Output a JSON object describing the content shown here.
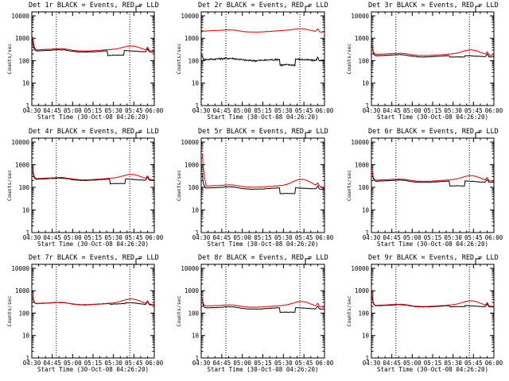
{
  "figure": {
    "events_color": "#000000",
    "lld_color": "#e00000",
    "background": "#ffffff"
  },
  "chart_data": [
    {
      "type": "line",
      "title": "Det 1r BLACK = Events, RED = LLD",
      "xlabel": "Start Time (30-Oct-08 04:26:20)",
      "ylabel": "Counts/sec",
      "y_scale": "log",
      "ylim": [
        1,
        15000
      ],
      "xlim": [
        0,
        100
      ],
      "yticks": [
        "1",
        "10",
        "100",
        "1000",
        "10000"
      ],
      "xticks": [
        "04:30",
        "04:45",
        "05:00",
        "05:15",
        "05:30",
        "05:45",
        "06:00"
      ],
      "vlines": [
        20,
        80
      ],
      "series": [
        {
          "name": "Events",
          "color": "#000000",
          "base": 265,
          "spike": 700,
          "dip": [
            62,
            75
          ],
          "dip_factor": 0.62,
          "bump": 1.0
        },
        {
          "name": "LLD",
          "color": "#e00000",
          "base": 295,
          "spike": 1100,
          "bump": 1.5
        }
      ]
    },
    {
      "type": "line",
      "title": "Det 2r BLACK = Events, RED = LLD",
      "xlabel": "Start Time (30-Oct-08 04:26:20)",
      "ylabel": "Counts/sec",
      "y_scale": "log",
      "ylim": [
        1,
        15000
      ],
      "xlim": [
        0,
        100
      ],
      "yticks": [
        "1",
        "10",
        "100",
        "1000",
        "10000"
      ],
      "xticks": [
        "04:30",
        "04:45",
        "05:00",
        "05:15",
        "05:30",
        "05:45",
        "06:00"
      ],
      "vlines": [
        20,
        80
      ],
      "series": [
        {
          "name": "Events",
          "color": "#000000",
          "base": 110,
          "spike": 160,
          "dip": [
            64,
            76
          ],
          "dip_factor": 0.55,
          "bump": 1.0,
          "noise": 0.18
        },
        {
          "name": "LLD",
          "color": "#e00000",
          "base": 2050,
          "spike": 2200,
          "bump": 1.25
        }
      ]
    },
    {
      "type": "line",
      "title": "Det 3r BLACK = Events, RED = LLD",
      "xlabel": "Start Time (30-Oct-08 04:26:20)",
      "ylabel": "Counts/sec",
      "y_scale": "log",
      "ylim": [
        1,
        15000
      ],
      "xlim": [
        0,
        100
      ],
      "yticks": [
        "1",
        "10",
        "100",
        "1000",
        "10000"
      ],
      "xticks": [
        "04:30",
        "04:45",
        "05:00",
        "05:15",
        "05:30",
        "05:45",
        "06:00"
      ],
      "vlines": [
        20,
        80
      ],
      "series": [
        {
          "name": "Events",
          "color": "#000000",
          "base": 160,
          "spike": 400,
          "dip": [
            64,
            76
          ],
          "dip_factor": 0.85,
          "bump": 1.0
        },
        {
          "name": "LLD",
          "color": "#e00000",
          "base": 185,
          "spike": 450,
          "bump": 1.6
        }
      ]
    },
    {
      "type": "line",
      "title": "Det 4r BLACK = Events, RED = LLD",
      "xlabel": "Start Time (30-Oct-08 04:26:20)",
      "ylabel": "Counts/sec",
      "y_scale": "log",
      "ylim": [
        1,
        15000
      ],
      "xlim": [
        0,
        100
      ],
      "yticks": [
        "1",
        "10",
        "100",
        "1000",
        "10000"
      ],
      "xticks": [
        "04:30",
        "04:45",
        "05:00",
        "05:15",
        "05:30",
        "05:45",
        "06:00"
      ],
      "vlines": [
        20,
        80
      ],
      "series": [
        {
          "name": "Events",
          "color": "#000000",
          "base": 220,
          "spike": 500,
          "dip": [
            64,
            76
          ],
          "dip_factor": 0.62,
          "bump": 1.0
        },
        {
          "name": "LLD",
          "color": "#e00000",
          "base": 235,
          "spike": 650,
          "bump": 1.55
        }
      ]
    },
    {
      "type": "line",
      "title": "Det 5r BLACK = Events, RED = LLD",
      "xlabel": "Start Time (30-Oct-08 04:26:20)",
      "ylabel": "Counts/sec",
      "y_scale": "log",
      "ylim": [
        1,
        15000
      ],
      "xlim": [
        0,
        100
      ],
      "yticks": [
        "1",
        "10",
        "100",
        "1000",
        "10000"
      ],
      "xticks": [
        "04:30",
        "04:45",
        "05:00",
        "05:15",
        "05:30",
        "05:45",
        "06:00"
      ],
      "vlines": [
        20,
        80
      ],
      "series": [
        {
          "name": "Events",
          "color": "#000000",
          "base": 90,
          "spike": 400,
          "dip": [
            64,
            76
          ],
          "dip_factor": 0.55,
          "bump": 1.0
        },
        {
          "name": "LLD",
          "color": "#e00000",
          "base": 110,
          "spike": 3000,
          "bump": 2.0
        }
      ]
    },
    {
      "type": "line",
      "title": "Det 6r BLACK = Events, RED = LLD",
      "xlabel": "Start Time (30-Oct-08 04:26:20)",
      "ylabel": "Counts/sec",
      "y_scale": "log",
      "ylim": [
        1,
        15000
      ],
      "xlim": [
        0,
        100
      ],
      "yticks": [
        "1",
        "10",
        "100",
        "1000",
        "10000"
      ],
      "xticks": [
        "04:30",
        "04:45",
        "05:00",
        "05:15",
        "05:30",
        "05:45",
        "06:00"
      ],
      "vlines": [
        20,
        80
      ],
      "series": [
        {
          "name": "Events",
          "color": "#000000",
          "base": 180,
          "spike": 400,
          "dip": [
            64,
            76
          ],
          "dip_factor": 0.6,
          "bump": 1.0
        },
        {
          "name": "LLD",
          "color": "#e00000",
          "base": 200,
          "spike": 500,
          "bump": 1.6
        }
      ]
    },
    {
      "type": "line",
      "title": "Det 7r BLACK = Events, RED = LLD",
      "xlabel": "Start Time (30-Oct-08 04:26:20)",
      "ylabel": "Counts/sec",
      "y_scale": "log",
      "ylim": [
        1,
        15000
      ],
      "xlim": [
        0,
        100
      ],
      "yticks": [
        "1",
        "10",
        "100",
        "1000",
        "10000"
      ],
      "xticks": [
        "04:30",
        "04:45",
        "05:00",
        "05:15",
        "05:30",
        "05:45",
        "06:00"
      ],
      "vlines": [
        20,
        80
      ],
      "series": [
        {
          "name": "Events",
          "color": "#000000",
          "base": 255,
          "spike": 500,
          "dip": [
            64,
            76
          ],
          "dip_factor": 0.92,
          "bump": 1.1
        },
        {
          "name": "LLD",
          "color": "#e00000",
          "base": 260,
          "spike": 600,
          "bump": 1.6
        }
      ]
    },
    {
      "type": "line",
      "title": "Det 8r BLACK = Events, RED = LLD",
      "xlabel": "Start Time (30-Oct-08 04:26:20)",
      "ylabel": "Counts/sec",
      "y_scale": "log",
      "ylim": [
        1,
        15000
      ],
      "xlim": [
        0,
        100
      ],
      "yticks": [
        "1",
        "10",
        "100",
        "1000",
        "10000"
      ],
      "xticks": [
        "04:30",
        "04:45",
        "05:00",
        "05:15",
        "05:30",
        "05:45",
        "06:00"
      ],
      "vlines": [
        20,
        80
      ],
      "series": [
        {
          "name": "Events",
          "color": "#000000",
          "base": 165,
          "spike": 400,
          "dip": [
            64,
            76
          ],
          "dip_factor": 0.62,
          "bump": 1.0
        },
        {
          "name": "LLD",
          "color": "#e00000",
          "base": 200,
          "spike": 500,
          "bump": 1.6
        }
      ]
    },
    {
      "type": "line",
      "title": "Det 9r BLACK = Events, RED = LLD",
      "xlabel": "Start Time (30-Oct-08 04:26:20)",
      "ylabel": "Counts/sec",
      "y_scale": "log",
      "ylim": [
        1,
        15000
      ],
      "xlim": [
        0,
        100
      ],
      "yticks": [
        "1",
        "10",
        "100",
        "1000",
        "10000"
      ],
      "xticks": [
        "04:30",
        "04:45",
        "05:00",
        "05:15",
        "05:30",
        "05:45",
        "06:00"
      ],
      "vlines": [
        20,
        80
      ],
      "series": [
        {
          "name": "Events",
          "color": "#000000",
          "base": 205,
          "spike": 450,
          "dip": [
            64,
            76
          ],
          "dip_factor": 0.88,
          "bump": 1.0
        },
        {
          "name": "LLD",
          "color": "#e00000",
          "base": 215,
          "spike": 550,
          "bump": 1.6
        }
      ]
    }
  ]
}
